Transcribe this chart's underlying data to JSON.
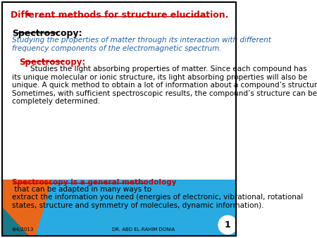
{
  "title": "Different methods for structure elucidation.",
  "title_color": "#cc0000",
  "bg_color": "#ffffff",
  "bottom_bg_color": "#29abe2",
  "orange_color": "#e8671b",
  "teal_color": "#1a7a8a",
  "border_color": "#000000",
  "text_black": "#000000",
  "text_blue": "#1f5fa6",
  "text_red": "#cc0000",
  "text_white": "#ffffff",
  "spectroscopy1_label": "Spectroscopy:",
  "spectroscopy1_def": "Studying the properties of matter through its interaction with different\nfrequency components of the electromagnetic spectrum.",
  "spectroscopy2_label": "Spectroscopy:",
  "spectroscopy2_body": "        Studies the light absorbing properties of matter. Since each compound has\nits unique molecular or ionic structure, its light absorbing properties will also be\nunique. A quick method to obtain a lot of information about a compound’s structure.\nSometimes, with sufficient spectroscopic results, the compound’s structure can be\ncompletely determined.",
  "bottom_text_part1": "Spectroscopy is a general methodology",
  "bottom_text_part2": " that can be adapted in many ways to\nextract the information you need (energies of electronic, vibrational, rotational\nstates, structure and symmetry of molecules, dynamic information).",
  "footer_text": "DR. ABD EL-RAHIM DONIA",
  "date_text": "4/4/2013",
  "page_num": "1",
  "bullet": "•"
}
